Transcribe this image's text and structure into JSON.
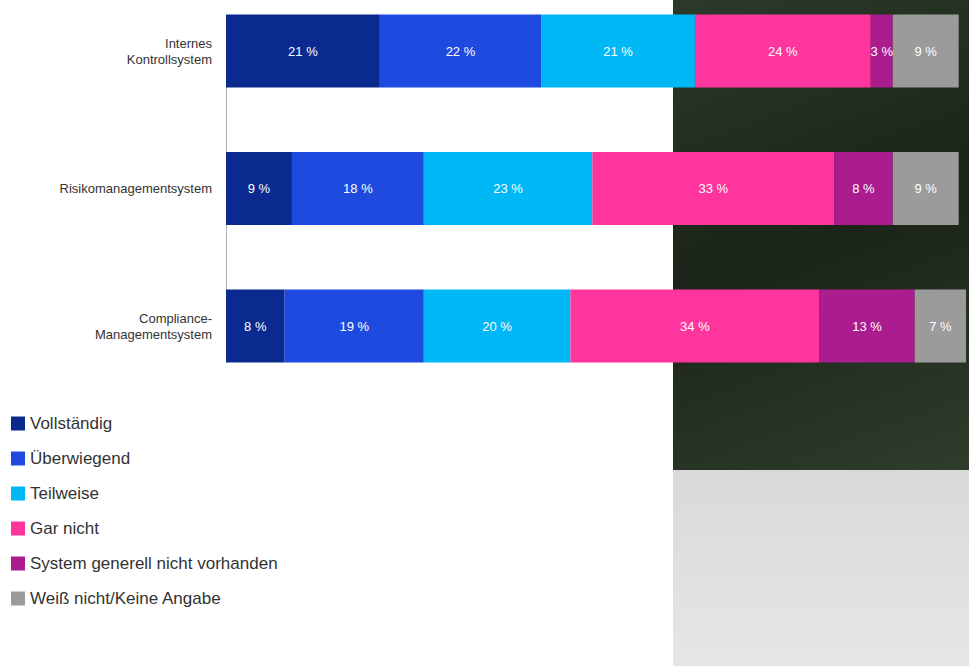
{
  "chart_data": {
    "type": "bar",
    "orientation": "horizontal",
    "stacked": true,
    "data_labels": true,
    "tick_labels": "y",
    "legend": "lower left",
    "categories": [
      "Internes Kontrollsystem",
      "Risikomanagementsystem",
      "Compliance-Managementsystem"
    ],
    "xlim": [
      0,
      101
    ],
    "series": [
      {
        "name": "Vollständig",
        "color": "#0a2a8f",
        "values": [
          21,
          9,
          8
        ],
        "value_labels": [
          "21 %",
          "9 %",
          "8 %"
        ]
      },
      {
        "name": "Überwiegend",
        "color": "#1e4ae0",
        "values": [
          22,
          18,
          19
        ],
        "value_labels": [
          "22 %",
          "18 %",
          "19 %"
        ]
      },
      {
        "name": "Teilweise",
        "color": "#00b8f5",
        "values": [
          21,
          23,
          20
        ],
        "value_labels": [
          "21 %",
          "23 %",
          "20 %"
        ]
      },
      {
        "name": "Gar nicht",
        "color": "#fd359d",
        "values": [
          24,
          33,
          34
        ],
        "value_labels": [
          "24 %",
          "33 %",
          "34 %"
        ]
      },
      {
        "name": "System generell nicht vorhanden",
        "color": "#ab1c8f",
        "values": [
          3,
          8,
          13
        ],
        "value_labels": [
          "3 %",
          "8 %",
          "13 %"
        ]
      },
      {
        "name": "Weiß nicht/Keine Angabe",
        "color": "#9b9b9b",
        "values": [
          9,
          9,
          7
        ],
        "value_labels": [
          "9 %",
          "9 %",
          "7 %"
        ]
      }
    ]
  }
}
